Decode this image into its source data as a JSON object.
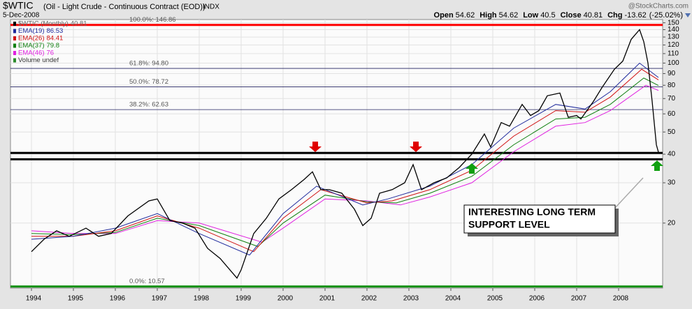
{
  "chart_data": {
    "type": "line",
    "symbol": "$WTIC",
    "title": "(Oil - Light Crude - Continuous Contract (EOD))",
    "exchange": "INDX",
    "date": "5-Dec-2008",
    "watermark": "@StockCharts.com",
    "quote": [
      {
        "label": "Open",
        "value": 54.62
      },
      {
        "label": "High",
        "value": 54.62
      },
      {
        "label": "Low",
        "value": 40.5
      },
      {
        "label": "Close",
        "value": 40.81
      },
      {
        "label": "Chg",
        "value": -13.62
      }
    ],
    "chg_pct": {
      "value": -25.02,
      "label": "(-25.02%)"
    },
    "volume_legend": "Volume undef",
    "log_scale": true,
    "grid": true,
    "xlim": [
      1993.5,
      2009.05
    ],
    "xticks": [
      1994,
      1995,
      1996,
      1997,
      1998,
      1999,
      2000,
      2001,
      2002,
      2003,
      2004,
      2005,
      2006,
      2007,
      2008
    ],
    "ylim": [
      10.4,
      155
    ],
    "yticks": [
      20,
      30,
      40,
      50,
      60,
      70,
      80,
      90,
      100,
      110,
      120,
      130,
      140,
      150
    ],
    "series": [
      {
        "name": "$WTIC (Monthly)",
        "last": 40.81,
        "color": "#000000",
        "x": [
          1994.0,
          1994.3,
          1994.6,
          1994.9,
          1995.3,
          1995.6,
          1995.9,
          1996.3,
          1996.8,
          1997.0,
          1997.3,
          1997.6,
          1997.9,
          1998.2,
          1998.5,
          1998.9,
          1999.0,
          1999.3,
          1999.6,
          1999.9,
          2000.2,
          2000.5,
          2000.7,
          2000.9,
          2001.1,
          2001.4,
          2001.7,
          2001.9,
          2002.1,
          2002.3,
          2002.6,
          2002.9,
          2003.1,
          2003.3,
          2003.6,
          2003.9,
          2004.2,
          2004.5,
          2004.8,
          2004.95,
          2005.2,
          2005.4,
          2005.7,
          2005.9,
          2006.1,
          2006.3,
          2006.6,
          2006.8,
          2007.0,
          2007.1,
          2007.4,
          2007.6,
          2007.9,
          2008.1,
          2008.3,
          2008.5,
          2008.6,
          2008.7,
          2008.8,
          2008.9,
          2008.95
        ],
        "values": [
          15,
          17,
          18.5,
          17.5,
          19,
          17.5,
          18,
          21.5,
          25,
          25.5,
          20.5,
          20,
          19,
          15.5,
          14,
          11.5,
          12.5,
          18,
          21,
          25.5,
          28,
          31,
          33.5,
          28,
          28,
          27,
          23,
          19.5,
          21,
          27,
          28,
          30,
          36,
          28,
          30,
          31.5,
          35,
          40,
          49,
          43,
          55,
          53,
          66,
          59,
          62,
          72,
          74,
          58,
          59,
          57,
          68,
          78,
          94,
          102,
          127,
          140,
          124,
          100,
          68,
          44,
          40.81
        ]
      },
      {
        "name": "EMA(19)",
        "last": 86.53,
        "color": "#1f2a9c",
        "x": [
          1994.0,
          1995.0,
          1996.0,
          1997.0,
          1998.0,
          1999.2,
          2000.0,
          2000.8,
          2001.9,
          2002.5,
          2003.5,
          2004.5,
          2005.5,
          2006.5,
          2007.2,
          2007.8,
          2008.5,
          2008.95
        ],
        "values": [
          17,
          17.5,
          19,
          22,
          18,
          14.5,
          22,
          29,
          24,
          25.5,
          29,
          36,
          52,
          66,
          63,
          75,
          100,
          86.53
        ]
      },
      {
        "name": "EMA(26)",
        "last": 84.41,
        "color": "#d01010",
        "x": [
          1994.0,
          1995.0,
          1996.0,
          1997.0,
          1998.0,
          1999.3,
          2000.0,
          2000.9,
          2002.0,
          2002.6,
          2003.5,
          2004.5,
          2005.5,
          2006.5,
          2007.2,
          2007.8,
          2008.55,
          2008.95
        ],
        "values": [
          17.5,
          17.5,
          18.5,
          21.5,
          19,
          15,
          21,
          28,
          24.5,
          25,
          28,
          34,
          48,
          62,
          61,
          71,
          94,
          84.41
        ]
      },
      {
        "name": "EMA(37)",
        "last": 79.8,
        "color": "#108010",
        "x": [
          1994.0,
          1995.0,
          1996.0,
          1997.0,
          1998.0,
          1999.4,
          2000.0,
          2001.0,
          2002.0,
          2002.7,
          2003.5,
          2004.5,
          2005.5,
          2006.5,
          2007.2,
          2007.8,
          2008.6,
          2008.95
        ],
        "values": [
          18,
          17.8,
          18.2,
          21,
          19.5,
          15.8,
          20,
          26.5,
          24.8,
          24.5,
          27,
          32,
          44,
          57,
          58,
          66,
          86,
          79.8
        ]
      },
      {
        "name": "EMA(46)",
        "last": 76.0,
        "color": "#e020e0",
        "x": [
          1994.0,
          1995.0,
          1996.0,
          1997.0,
          1998.0,
          1999.5,
          2000.0,
          2001.0,
          2002.0,
          2002.8,
          2003.5,
          2004.5,
          2005.5,
          2006.5,
          2007.2,
          2007.8,
          2008.65,
          2008.95
        ],
        "values": [
          18.5,
          18,
          18,
          20.5,
          20,
          16.5,
          19,
          25.5,
          25,
          24,
          26,
          30,
          41,
          53,
          55,
          62,
          80,
          76.0
        ]
      }
    ],
    "fib_levels": [
      {
        "value": 146.86,
        "label": "100.0%: 146.86",
        "color": "#ff0000"
      },
      {
        "value": 94.8,
        "label": "61.8%: 94.80",
        "color": "#202060"
      },
      {
        "value": 78.72,
        "label": "50.0%: 78.72",
        "color": "#202060"
      },
      {
        "value": 62.63,
        "label": "38.2%: 62.63",
        "color": "#202060"
      },
      {
        "value": 10.57,
        "label": "0.0%: 10.57",
        "color": "#109010"
      }
    ],
    "support_levels": [
      40.5,
      38
    ],
    "annotation": [
      "INTERESTING LONG TERM",
      "SUPPORT LEVEL"
    ]
  }
}
